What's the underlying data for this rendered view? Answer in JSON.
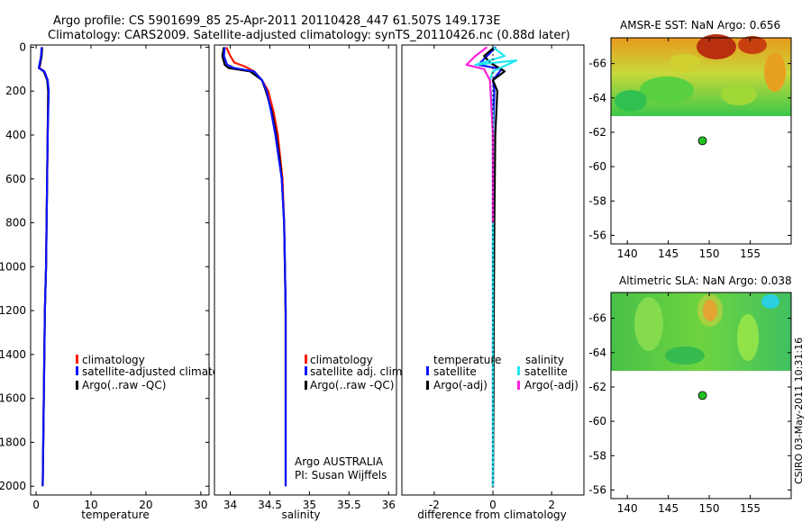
{
  "title": {
    "line1": "Argo profile: CS 5901699_85 25-Apr-2011 20110428_447 61.507S 149.173E",
    "line2": "Climatology: CARS2009. Satellite-adjusted climatology: synTS_20110426.nc (0.88d later)"
  },
  "credit": "CSIRO 03-May-2011 10:31:16",
  "colors": {
    "red": "#ff1a00",
    "blue": "#0a14ff",
    "black": "#000000",
    "cyan": "#22e8f0",
    "magenta": "#ff22dd",
    "dot": "#22c022"
  },
  "chart_data": [
    {
      "type": "line",
      "id": "temperature",
      "xlabel": "temperature",
      "xlim": [
        -1,
        31.5
      ],
      "ylim": [
        2040,
        -10
      ],
      "xticks": [
        0,
        10,
        20,
        30
      ],
      "yticks": [
        0,
        200,
        400,
        600,
        800,
        1000,
        1200,
        1400,
        1600,
        1800,
        2000
      ],
      "legend": [
        "climatology",
        "satellite-adjusted climatology",
        "Argo(..raw -QC)"
      ],
      "series": [
        {
          "name": "climatology",
          "color": "red",
          "points": [
            [
              1.0,
              0
            ],
            [
              0.9,
              40
            ],
            [
              0.7,
              80
            ],
            [
              0.6,
              95
            ],
            [
              1.5,
              110
            ],
            [
              2.1,
              150
            ],
            [
              2.2,
              200
            ],
            [
              2.1,
              400
            ],
            [
              2.0,
              600
            ],
            [
              1.9,
              800
            ],
            [
              1.8,
              1000
            ],
            [
              1.6,
              1200
            ],
            [
              1.5,
              1400
            ],
            [
              1.4,
              1600
            ],
            [
              1.3,
              1800
            ],
            [
              1.2,
              2000
            ]
          ]
        },
        {
          "name": "Argo(..raw -QC)",
          "color": "black",
          "points": [
            [
              1.1,
              0
            ],
            [
              1.0,
              40
            ],
            [
              0.7,
              80
            ],
            [
              0.5,
              95
            ],
            [
              1.4,
              110
            ],
            [
              2.0,
              150
            ],
            [
              2.2,
              200
            ],
            [
              2.1,
              400
            ],
            [
              2.0,
              600
            ],
            [
              1.9,
              800
            ],
            [
              1.8,
              1000
            ],
            [
              1.6,
              1200
            ],
            [
              1.5,
              1400
            ],
            [
              1.4,
              1600
            ],
            [
              1.3,
              1800
            ],
            [
              1.2,
              2000
            ]
          ]
        },
        {
          "name": "satellite-adjusted climatology",
          "color": "blue",
          "points": [
            [
              1.0,
              0
            ],
            [
              0.9,
              40
            ],
            [
              0.6,
              80
            ],
            [
              0.5,
              95
            ],
            [
              1.5,
              110
            ],
            [
              2.1,
              150
            ],
            [
              2.3,
              200
            ],
            [
              2.1,
              400
            ],
            [
              2.0,
              600
            ],
            [
              1.9,
              800
            ],
            [
              1.8,
              1000
            ],
            [
              1.6,
              1200
            ],
            [
              1.5,
              1400
            ],
            [
              1.4,
              1600
            ],
            [
              1.3,
              1800
            ],
            [
              1.2,
              2000
            ]
          ]
        }
      ]
    },
    {
      "type": "line",
      "id": "salinity",
      "xlabel": "salinity",
      "xlim": [
        33.8,
        36.1
      ],
      "ylim": [
        2040,
        -10
      ],
      "xticks": [
        34,
        34.5,
        35,
        35.5,
        36
      ],
      "legend": [
        "climatology",
        "satellite adj. clim.",
        "Argo(..raw -QC)"
      ],
      "annotation": [
        "Argo AUSTRALIA",
        "PI: Susan Wijffels"
      ],
      "series": [
        {
          "name": "climatology",
          "color": "red",
          "points": [
            [
              33.95,
              0
            ],
            [
              34.0,
              40
            ],
            [
              34.05,
              70
            ],
            [
              34.2,
              90
            ],
            [
              34.3,
              110
            ],
            [
              34.4,
              150
            ],
            [
              34.48,
              200
            ],
            [
              34.55,
              300
            ],
            [
              34.6,
              400
            ],
            [
              34.63,
              500
            ],
            [
              34.66,
              600
            ],
            [
              34.68,
              800
            ],
            [
              34.69,
              1000
            ],
            [
              34.7,
              1200
            ],
            [
              34.7,
              1400
            ],
            [
              34.7,
              1600
            ]
          ]
        },
        {
          "name": "Argo(..raw -QC)",
          "color": "black",
          "points": [
            [
              33.92,
              0
            ],
            [
              33.9,
              40
            ],
            [
              33.93,
              80
            ],
            [
              33.98,
              95
            ],
            [
              34.25,
              110
            ],
            [
              34.4,
              150
            ],
            [
              34.45,
              200
            ],
            [
              34.53,
              300
            ],
            [
              34.58,
              400
            ],
            [
              34.62,
              500
            ],
            [
              34.65,
              600
            ],
            [
              34.68,
              800
            ],
            [
              34.69,
              1000
            ],
            [
              34.7,
              1200
            ],
            [
              34.7,
              1400
            ],
            [
              34.7,
              1600
            ],
            [
              34.7,
              1800
            ],
            [
              34.7,
              2000
            ]
          ]
        },
        {
          "name": "satellite adj. clim.",
          "color": "blue",
          "points": [
            [
              33.93,
              0
            ],
            [
              33.92,
              40
            ],
            [
              33.96,
              80
            ],
            [
              34.05,
              95
            ],
            [
              34.3,
              110
            ],
            [
              34.4,
              150
            ],
            [
              34.46,
              200
            ],
            [
              34.52,
              300
            ],
            [
              34.57,
              400
            ],
            [
              34.61,
              500
            ],
            [
              34.65,
              600
            ],
            [
              34.68,
              800
            ],
            [
              34.69,
              1000
            ],
            [
              34.7,
              1200
            ],
            [
              34.7,
              1400
            ],
            [
              34.7,
              1600
            ],
            [
              34.7,
              1800
            ],
            [
              34.7,
              2000
            ]
          ]
        }
      ]
    },
    {
      "type": "line",
      "id": "difference",
      "xlabel": "difference from climatology",
      "xlim": [
        -3.1,
        3.1
      ],
      "ylim": [
        2040,
        -10
      ],
      "xticks": [
        -2,
        0,
        2
      ],
      "legend_groups": [
        {
          "title": "temperature",
          "items": [
            "satellite",
            "Argo(-adj)"
          ]
        },
        {
          "title": "salinity",
          "items": [
            "satellite",
            "Argo(-adj)"
          ]
        }
      ],
      "series": [
        {
          "name": "temperature satellite",
          "color": "blue",
          "points": [
            [
              0.1,
              0
            ],
            [
              -0.2,
              40
            ],
            [
              -0.5,
              80
            ],
            [
              0.3,
              100
            ],
            [
              0.0,
              150
            ],
            [
              0.05,
              200
            ],
            [
              0.0,
              400
            ],
            [
              0.0,
              800
            ],
            [
              0.0,
              1200
            ],
            [
              0.0,
              1600
            ],
            [
              0.0,
              2000
            ]
          ]
        },
        {
          "name": "temperature Argo(-adj)",
          "color": "black",
          "points": [
            [
              0.05,
              0
            ],
            [
              -0.3,
              40
            ],
            [
              -0.1,
              70
            ],
            [
              0.4,
              110
            ],
            [
              0.0,
              150
            ],
            [
              0.15,
              200
            ],
            [
              0.08,
              400
            ],
            [
              0.05,
              800
            ],
            [
              0.03,
              1200
            ],
            [
              0.02,
              1600
            ],
            [
              0.0,
              2000
            ]
          ]
        },
        {
          "name": "salinity satellite",
          "color": "cyan",
          "points": [
            [
              0.0,
              0
            ],
            [
              0.4,
              40
            ],
            [
              -0.6,
              80
            ],
            [
              0.8,
              60
            ],
            [
              0.0,
              110
            ],
            [
              -0.1,
              150
            ],
            [
              0.0,
              300
            ],
            [
              0.0,
              600
            ],
            [
              0.0,
              1000
            ],
            [
              0.0,
              1500
            ],
            [
              0.0,
              2000
            ]
          ]
        },
        {
          "name": "salinity Argo(-adj)",
          "color": "magenta",
          "points": [
            [
              -0.2,
              0
            ],
            [
              -0.6,
              40
            ],
            [
              -0.9,
              80
            ],
            [
              -0.3,
              100
            ],
            [
              -0.1,
              150
            ],
            [
              0.0,
              400
            ],
            [
              0.0,
              800
            ]
          ]
        }
      ]
    },
    {
      "type": "heatmap",
      "id": "sst-map",
      "title": "AMSR-E SST: NaN Argo: 0.656",
      "xlim": [
        138,
        160
      ],
      "ylim": [
        -55.5,
        -67.5
      ],
      "xticks": [
        140,
        145,
        150,
        155
      ],
      "yticks": [
        -56,
        -58,
        -60,
        -62,
        -64,
        -66
      ],
      "marker": [
        149.173,
        -61.507
      ]
    },
    {
      "type": "heatmap",
      "id": "sla-map",
      "title": "Altimetric SLA: NaN Argo: 0.038",
      "xlim": [
        138,
        160
      ],
      "ylim": [
        -55.5,
        -67.5
      ],
      "xticks": [
        140,
        145,
        150,
        155
      ],
      "yticks": [
        -56,
        -58,
        -60,
        -62,
        -64,
        -66
      ],
      "marker": [
        149.173,
        -61.507
      ]
    }
  ]
}
